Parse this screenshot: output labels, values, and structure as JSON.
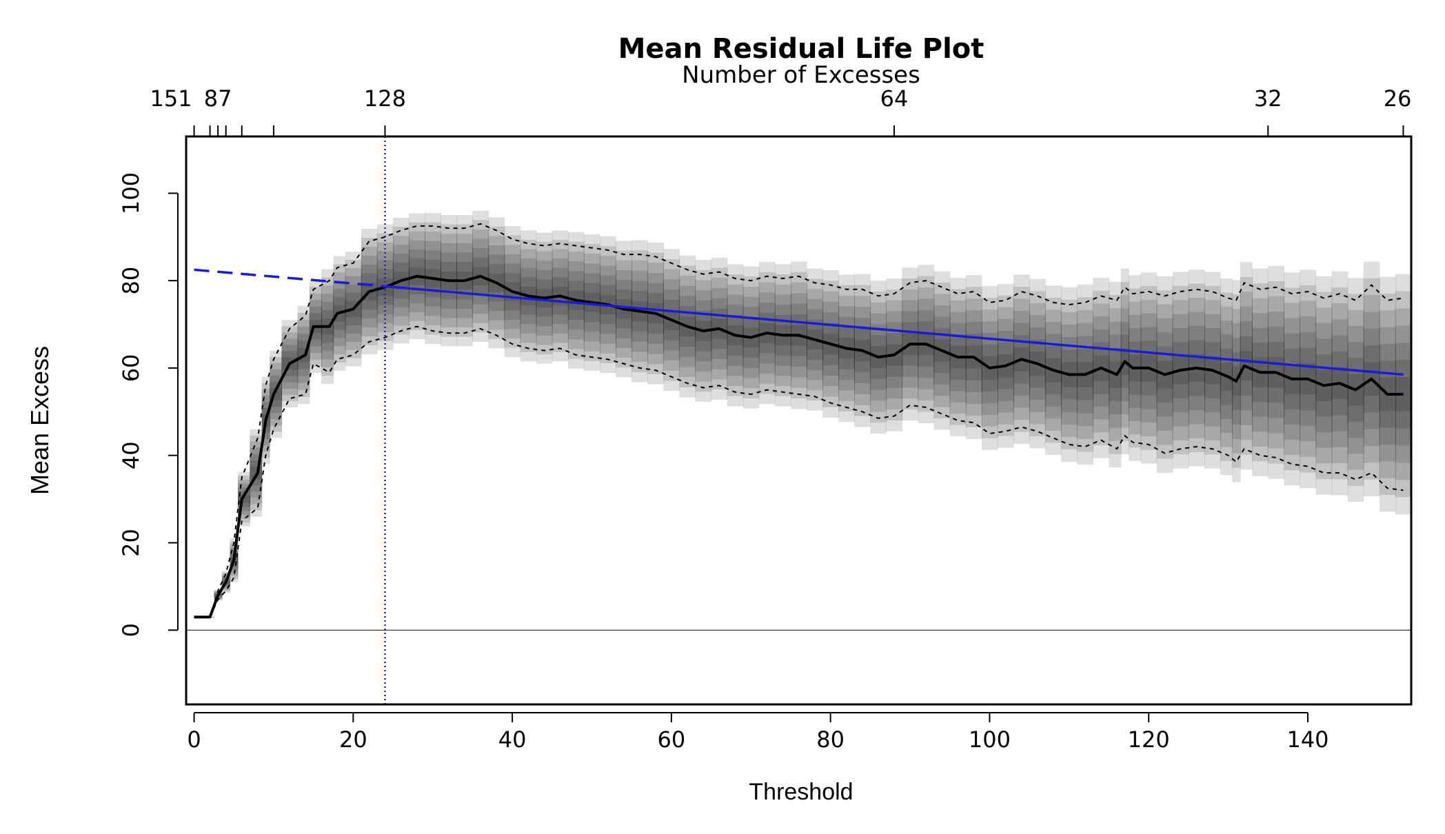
{
  "chart_data": {
    "type": "line",
    "title": "Mean Residual Life Plot",
    "top_axis_label": "Number of Excesses",
    "xlabel": "Threshold",
    "ylabel": "Mean Excess",
    "xlim": [
      -1,
      153
    ],
    "ylim": [
      -17,
      113
    ],
    "x_ticks": [
      0,
      20,
      40,
      60,
      80,
      100,
      120,
      140
    ],
    "y_ticks": [
      0,
      20,
      40,
      60,
      80,
      100
    ],
    "top_ticks": [
      {
        "x": 0,
        "label": "151"
      },
      {
        "x": 2,
        "label": ""
      },
      {
        "x": 3,
        "label": "87"
      },
      {
        "x": 4,
        "label": ""
      },
      {
        "x": 6,
        "label": ""
      },
      {
        "x": 10,
        "label": ""
      },
      {
        "x": 24,
        "label": "128"
      },
      {
        "x": 88,
        "label": "64"
      },
      {
        "x": 135,
        "label": "32"
      },
      {
        "x": 152,
        "label": "26"
      }
    ],
    "selected_threshold": 24,
    "fit_line": {
      "x0": 0,
      "y0": 82.5,
      "x1": 152,
      "y1": 58.5,
      "dashed_until": 24,
      "color": "#1a1adc"
    },
    "threshold_line_color": "#1a1adc",
    "series": [
      {
        "name": "",
        "x": [
          0,
          2,
          3,
          4,
          5,
          6,
          8,
          9,
          10,
          12,
          14,
          15,
          17,
          18,
          20,
          22,
          24,
          26,
          28,
          30,
          32,
          34,
          36,
          38,
          40,
          42,
          44,
          46,
          48,
          50,
          52,
          54,
          56,
          58,
          60,
          62,
          64,
          66,
          68,
          70,
          72,
          74,
          76,
          78,
          80,
          82,
          84,
          86,
          88,
          90,
          92,
          94,
          96,
          98,
          100,
          102,
          104,
          106,
          108,
          110,
          112,
          114,
          116,
          117,
          118,
          120,
          122,
          124,
          126,
          128,
          130,
          131,
          132,
          134,
          136,
          138,
          140,
          142,
          144,
          146,
          148,
          150,
          152
        ],
        "mean": [
          3,
          3,
          8,
          11,
          16,
          30,
          36,
          48,
          54,
          61,
          63,
          69.5,
          69.5,
          72.5,
          73.5,
          77.5,
          78.5,
          80,
          81,
          80.5,
          80,
          80,
          81,
          79.5,
          77.5,
          76.5,
          76,
          76.5,
          75.5,
          75,
          74.5,
          73.5,
          73,
          72.5,
          71,
          69.5,
          68.5,
          69,
          67.5,
          67,
          68,
          67.5,
          67.5,
          66.5,
          65.5,
          64.5,
          64,
          62.5,
          63,
          65.5,
          65.5,
          64,
          62.5,
          62.5,
          60,
          60.5,
          62,
          61,
          59.5,
          58.5,
          58.5,
          60,
          58.5,
          61.5,
          60,
          60,
          58.5,
          59.5,
          60,
          59.5,
          58,
          57,
          60.5,
          59,
          59,
          57.5,
          57.5,
          56,
          56.5,
          55,
          57.5,
          54,
          54
        ],
        "upper": [
          3,
          3,
          9,
          13,
          20,
          35,
          44,
          56,
          62,
          69,
          72,
          78,
          80,
          83,
          84,
          89,
          90,
          91.5,
          92.5,
          92.5,
          92,
          92,
          93,
          91.5,
          89.5,
          88.5,
          88,
          88.5,
          88,
          87.5,
          87,
          86,
          86,
          85.5,
          84,
          82.5,
          81.5,
          82,
          80.5,
          80,
          81,
          80.5,
          81,
          79.5,
          79,
          78,
          78,
          76.5,
          77,
          79.5,
          80,
          78.5,
          77,
          77.5,
          75,
          75.5,
          77.5,
          76.5,
          75,
          74.5,
          75,
          76.5,
          75.5,
          78.5,
          77,
          77.5,
          76.5,
          77.5,
          78,
          77.5,
          76,
          75.5,
          79.5,
          78,
          78.5,
          77,
          77.5,
          76,
          77,
          75.5,
          79,
          75.5,
          76
        ],
        "lower": [
          3,
          3,
          7,
          9,
          12,
          25,
          28,
          40,
          46,
          53,
          54,
          61,
          59,
          62,
          63,
          66,
          67,
          68.5,
          69.5,
          68.5,
          68,
          68,
          69,
          67.5,
          65.5,
          64.5,
          64,
          64.5,
          63,
          62.5,
          62,
          61,
          60,
          59.5,
          58,
          56.5,
          55.5,
          56,
          54.5,
          54,
          55,
          54.5,
          54,
          53.5,
          52,
          51,
          50,
          48.5,
          49,
          51.5,
          51,
          49.5,
          48,
          47.5,
          45,
          45.5,
          46.5,
          45.5,
          44,
          42.5,
          42,
          43.5,
          41.5,
          44.5,
          43,
          42.5,
          40.5,
          41.5,
          42,
          41.5,
          40,
          38.5,
          41.5,
          40,
          39.5,
          38,
          37.5,
          36,
          36,
          34.5,
          36,
          32.5,
          32
        ]
      }
    ]
  }
}
